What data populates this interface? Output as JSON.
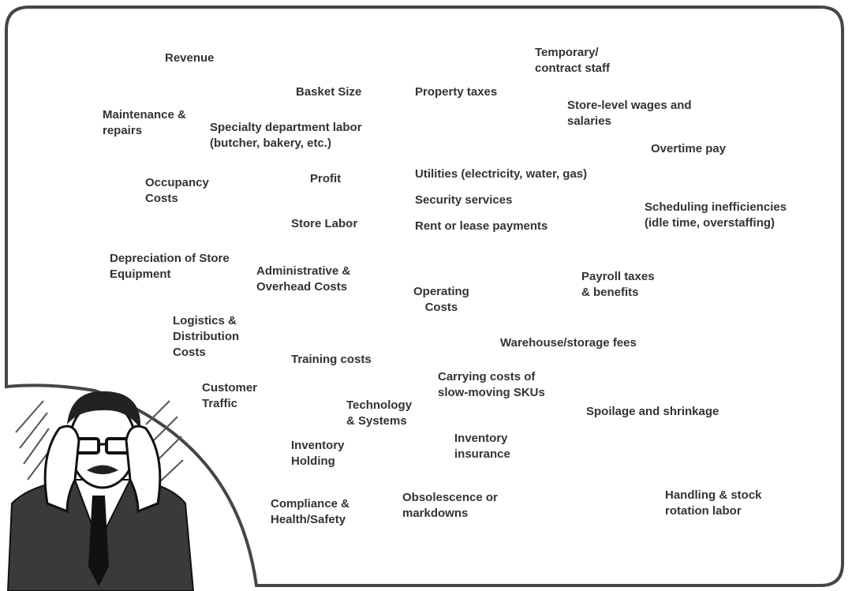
{
  "colors": {
    "border": "#464646",
    "text": "#333333",
    "suit": "#3a3a3a"
  },
  "illustration": {
    "icon": "stressed-businessman-illustration"
  },
  "labels": [
    {
      "id": "revenue",
      "text": "Revenue"
    },
    {
      "id": "temporary-contract-staff",
      "text": "Temporary/\ncontract staff"
    },
    {
      "id": "basket-size",
      "text": "Basket Size"
    },
    {
      "id": "property-taxes",
      "text": "Property taxes"
    },
    {
      "id": "maintenance-repairs",
      "text": "Maintenance &\nrepairs"
    },
    {
      "id": "specialty-department-labor",
      "text": "Specialty department labor\n(butcher, bakery, etc.)"
    },
    {
      "id": "store-level-wages",
      "text": "Store-level wages and\nsalaries"
    },
    {
      "id": "overtime-pay",
      "text": "Overtime pay"
    },
    {
      "id": "utilities",
      "text": "Utilities (electricity, water, gas)"
    },
    {
      "id": "profit",
      "text": "Profit"
    },
    {
      "id": "occupancy-costs",
      "text": "Occupancy\nCosts"
    },
    {
      "id": "security-services",
      "text": "Security services"
    },
    {
      "id": "scheduling-inefficiencies",
      "text": "Scheduling inefficiencies\n(idle time, overstaffing)"
    },
    {
      "id": "store-labor",
      "text": "Store Labor"
    },
    {
      "id": "rent-lease",
      "text": "Rent or lease payments"
    },
    {
      "id": "depreciation",
      "text": "Depreciation of Store\nEquipment"
    },
    {
      "id": "administrative-overhead",
      "text": "Administrative &\nOverhead Costs"
    },
    {
      "id": "payroll-taxes",
      "text": "Payroll taxes\n& benefits"
    },
    {
      "id": "operating-costs",
      "text": "Operating\nCosts"
    },
    {
      "id": "logistics-distribution",
      "text": "Logistics &\nDistribution\nCosts"
    },
    {
      "id": "warehouse-fees",
      "text": "Warehouse/storage fees"
    },
    {
      "id": "training-costs",
      "text": "Training costs"
    },
    {
      "id": "carrying-costs",
      "text": "Carrying costs of\nslow-moving SKUs"
    },
    {
      "id": "customer-traffic",
      "text": "Customer\nTraffic"
    },
    {
      "id": "technology-systems",
      "text": "Technology\n& Systems"
    },
    {
      "id": "spoilage-shrinkage",
      "text": "Spoilage and shrinkage"
    },
    {
      "id": "inventory-insurance",
      "text": "Inventory\ninsurance"
    },
    {
      "id": "inventory-holding",
      "text": "Inventory\nHolding"
    },
    {
      "id": "handling-stock-rotation",
      "text": "Handling & stock\nrotation labor"
    },
    {
      "id": "obsolescence-markdowns",
      "text": "Obsolescence or\nmarkdowns"
    },
    {
      "id": "compliance-health-safety",
      "text": "Compliance &\nHealth/Safety"
    }
  ]
}
